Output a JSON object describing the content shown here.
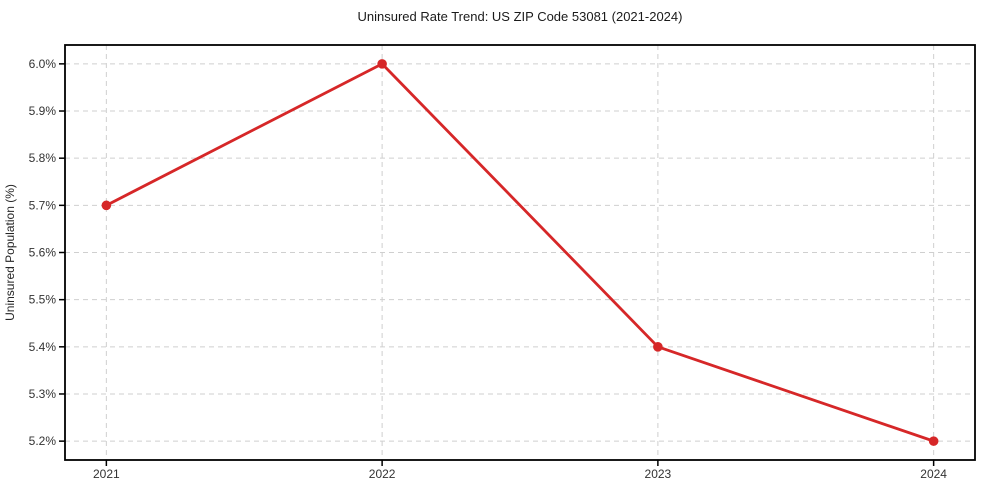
{
  "figure": {
    "background": "#ffffff"
  },
  "chart_data": {
    "type": "line",
    "title": "Uninsured Rate Trend: US ZIP Code 53081 (2021-2024)",
    "xlabel": "",
    "ylabel": "Uninsured Population (%)",
    "x": [
      2021,
      2022,
      2023,
      2024
    ],
    "values": [
      5.7,
      6.0,
      5.4,
      5.2
    ],
    "x_tick_labels": [
      "2021",
      "2022",
      "2023",
      "2024"
    ],
    "y_ticks": [
      5.2,
      5.3,
      5.4,
      5.5,
      5.6,
      5.7,
      5.8,
      5.9,
      6.0
    ],
    "y_tick_labels": [
      "5.2%",
      "5.3%",
      "5.4%",
      "5.5%",
      "5.6%",
      "5.7%",
      "5.8%",
      "5.9%",
      "6.0%"
    ],
    "xlim": [
      2020.85,
      2024.15
    ],
    "ylim": [
      5.16,
      6.04
    ],
    "grid": true,
    "grid_style": "dashed",
    "legend": "none",
    "marker": "circle"
  },
  "colors": {
    "line": "#d62728",
    "marker": "#d62728",
    "grid": "#cfcfcf",
    "spine": "#000000",
    "tick": "#000000",
    "title_text": "#1a1a1a",
    "tick_text": "#333333",
    "background": "#ffffff"
  }
}
